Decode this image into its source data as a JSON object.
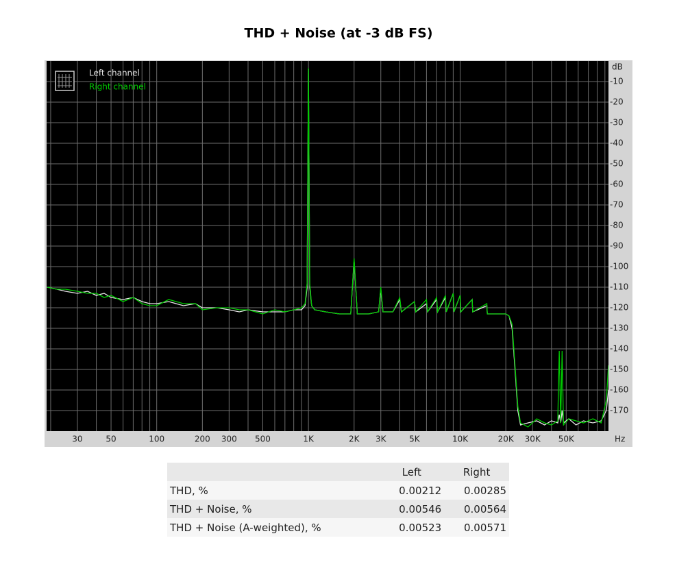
{
  "chart_data": {
    "type": "line",
    "title": "THD + Noise (at -3 dB FS)",
    "x_label": "Hz",
    "y_label": "dB",
    "x_log": true,
    "grid": true,
    "legend": "upper left",
    "background": "#000000",
    "xlim": [
      18.8,
      95000
    ],
    "ylim": [
      -180,
      0
    ],
    "xticks": [
      30,
      50,
      100,
      200,
      300,
      500,
      {
        "value": 1000,
        "label": "1K"
      },
      {
        "value": 2000,
        "label": "2K"
      },
      {
        "value": 3000,
        "label": "3K"
      },
      {
        "value": 5000,
        "label": "5K"
      },
      {
        "value": 10000,
        "label": "10K"
      },
      {
        "value": 20000,
        "label": "20K"
      },
      {
        "value": 30000,
        "label": "30K"
      },
      {
        "value": 50000,
        "label": "50K"
      }
    ],
    "x_minor_grid": [
      20,
      40,
      60,
      70,
      80,
      90,
      400,
      600,
      700,
      800,
      900,
      4000,
      6000,
      7000,
      8000,
      9000,
      40000,
      60000,
      70000,
      80000,
      90000
    ],
    "yticks": [
      -10,
      -20,
      -30,
      -40,
      -50,
      -60,
      -70,
      -80,
      -90,
      -100,
      -110,
      -120,
      -130,
      -140,
      -150,
      -160,
      -170
    ],
    "x": [
      19,
      22,
      25,
      30,
      35,
      40,
      45,
      50,
      60,
      70,
      80,
      90,
      100,
      120,
      150,
      180,
      200,
      250,
      300,
      350,
      400,
      500,
      600,
      700,
      800,
      900,
      950,
      980,
      1000,
      1020,
      1050,
      1100,
      1300,
      1600,
      1900,
      2000,
      2100,
      2500,
      2900,
      3000,
      3100,
      3600,
      4000,
      4100,
      5000,
      5100,
      6000,
      6100,
      7000,
      7100,
      8000,
      8100,
      9000,
      9100,
      10000,
      10100,
      12000,
      12100,
      15000,
      15100,
      18000,
      20000,
      21000,
      22000,
      23000,
      24000,
      25000,
      28000,
      32000,
      36000,
      40000,
      44000,
      45000,
      46000,
      47000,
      48000,
      52000,
      58000,
      65000,
      75000,
      85000,
      92000,
      95000
    ],
    "series": [
      {
        "name": "Left channel",
        "color": "#e8e8e8",
        "values": [
          -110,
          -111,
          -112,
          -113,
          -112,
          -114,
          -113,
          -115,
          -116,
          -115,
          -117,
          -118,
          -118,
          -117,
          -119,
          -118,
          -120,
          -120,
          -121,
          -122,
          -121,
          -122,
          -122,
          -122,
          -121,
          -121,
          -119,
          -110,
          -4,
          -110,
          -119,
          -121,
          -122,
          -123,
          -123,
          -97,
          -123,
          -123,
          -122,
          -111,
          -122,
          -122,
          -116,
          -122,
          -117,
          -122,
          -118,
          -122,
          -116,
          -122,
          -115,
          -122,
          -113,
          -122,
          -114,
          -122,
          -116,
          -122,
          -119,
          -123,
          -123,
          -123,
          -124,
          -130,
          -150,
          -170,
          -177,
          -176,
          -175,
          -177,
          -175,
          -176,
          -172,
          -176,
          -170,
          -176,
          -174,
          -177,
          -175,
          -176,
          -175,
          -170,
          -160
        ]
      },
      {
        "name": "Right channel",
        "color": "#00cc00",
        "values": [
          -110,
          -111,
          -111,
          -112,
          -113,
          -113,
          -115,
          -114,
          -117,
          -115,
          -118,
          -119,
          -119,
          -116,
          -118,
          -118,
          -121,
          -120,
          -120,
          -121,
          -121,
          -123,
          -121,
          -122,
          -121,
          -120,
          -118,
          -108,
          -3.5,
          -108,
          -119,
          -121,
          -122,
          -123,
          -123,
          -96,
          -123,
          -123,
          -122,
          -110,
          -122,
          -122,
          -115,
          -122,
          -117,
          -122,
          -116,
          -122,
          -115,
          -122,
          -114,
          -122,
          -113,
          -122,
          -114,
          -122,
          -116,
          -122,
          -118,
          -123,
          -123,
          -123,
          -124,
          -128,
          -148,
          -168,
          -176,
          -178,
          -174,
          -176,
          -177,
          -175,
          -141,
          -176,
          -141,
          -177,
          -174,
          -175,
          -176,
          -174,
          -176,
          -165,
          -148
        ]
      }
    ]
  },
  "table": {
    "header": [
      "Left",
      "Right"
    ],
    "rows": [
      [
        "THD, %",
        "0.00212",
        "0.00285"
      ],
      [
        "THD + Noise, %",
        "0.00546",
        "0.00564"
      ],
      [
        "THD + Noise (A-weighted), %",
        "0.00523",
        "0.00571"
      ]
    ]
  }
}
